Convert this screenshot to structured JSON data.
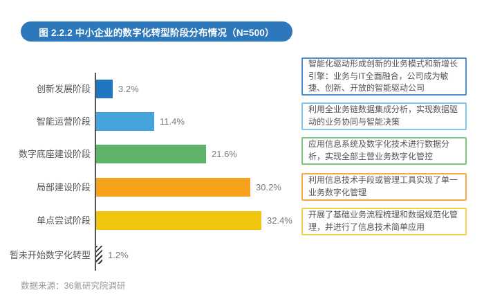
{
  "title": {
    "label": "图 2.2.2 中小企业的数字化转型阶段分布情况（N=500）",
    "bg_color": "#2d77bb",
    "text_color": "#ffffff"
  },
  "chart_data": {
    "type": "bar",
    "orientation": "horizontal",
    "title": "图 2.2.2 中小企业的数字化转型阶段分布情况（N=500）",
    "categories": [
      "创新发展阶段",
      "智能运营阶段",
      "数字底座建设阶段",
      "局部建设阶段",
      "单点尝试阶段",
      "暂未开始数字化转型"
    ],
    "values": [
      3.2,
      11.4,
      21.6,
      30.2,
      32.4,
      1.2
    ],
    "value_labels": [
      "3.2%",
      "11.4%",
      "21.6%",
      "30.2%",
      "32.4%",
      "1.2%"
    ],
    "bar_colors": [
      "#2176c0",
      "#45a3dc",
      "#5db469",
      "#f6a21c",
      "#f0c60e",
      "hatch"
    ],
    "xlabel": "",
    "ylabel": "",
    "xlim": [
      0,
      35
    ],
    "grid": false,
    "legend": false,
    "n": 500
  },
  "annotations": [
    {
      "text": "智能化驱动形成创新的业务模式和新增长引擎：业务与IT全面融合，公司成为敏捷、创新、开放的智能驱动公司",
      "border_color": "#4a90d2"
    },
    {
      "text": "利用全业务链数据集成分析，实现数据驱动的业务协同与智能决策",
      "border_color": "#83c6ea"
    },
    {
      "text": "应用信息系统及数字化技术进行数据分析，实现全部主营业务数字化管控",
      "border_color": "#77c77d"
    },
    {
      "text": "利用信息技术手段或管理工具实现了单一业务数字化管理",
      "border_color": "#f6ab46"
    },
    {
      "text": "开展了基础业务流程梳理和数据规范化管理，并进行了信息技术简单应用",
      "border_color": "#f0d24a"
    }
  ],
  "source": {
    "label": "数据来源：36氪研究院调研"
  }
}
